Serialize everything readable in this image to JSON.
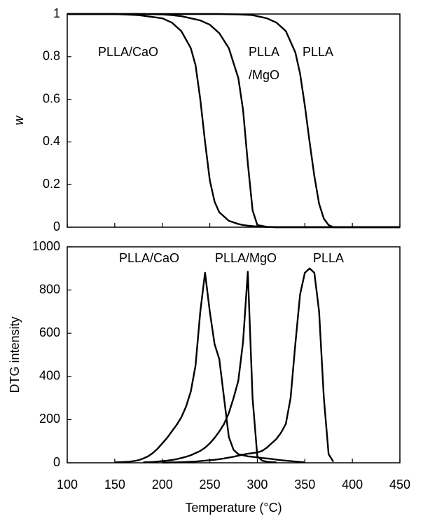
{
  "chart_data": [
    {
      "type": "line",
      "ylabel": "w",
      "x": [
        100,
        150,
        175,
        200,
        210,
        220,
        230,
        235,
        240,
        245,
        250,
        255,
        260,
        270,
        280,
        285,
        290,
        295,
        300,
        310,
        320,
        330,
        340,
        345,
        350,
        355,
        360,
        365,
        370,
        375,
        380,
        400,
        450
      ],
      "xlim": [
        100,
        450
      ],
      "xticks": [
        100,
        150,
        200,
        250,
        300,
        350,
        400,
        450
      ],
      "ylim": [
        0,
        1
      ],
      "yticks": [
        0,
        0.2,
        0.4,
        0.6,
        0.8,
        1
      ],
      "annotations": [
        "PLLA/CaO",
        "PLLA",
        "/MgO",
        "PLLA"
      ],
      "series": [
        {
          "color": "#000000",
          "values": [
            1,
            1,
            0.995,
            0.98,
            0.96,
            0.92,
            0.84,
            0.76,
            0.6,
            0.4,
            0.22,
            0.12,
            0.07,
            0.03,
            0.015,
            0.01,
            0.007,
            0.005,
            0.003,
            0.001,
            0,
            0,
            0,
            0,
            0,
            0,
            0,
            0,
            0,
            0,
            0,
            0,
            0
          ]
        },
        {
          "color": "#000000",
          "values": [
            1,
            1,
            1,
            0.998,
            0.995,
            0.99,
            0.98,
            0.975,
            0.97,
            0.96,
            0.95,
            0.93,
            0.91,
            0.84,
            0.7,
            0.55,
            0.3,
            0.08,
            0.01,
            0.002,
            0,
            0,
            0,
            0,
            0,
            0,
            0,
            0,
            0,
            0,
            0,
            0,
            0
          ]
        },
        {
          "color": "#000000",
          "values": [
            1,
            1,
            1,
            1,
            1,
            1,
            1,
            1,
            1,
            1,
            1,
            1,
            1,
            0.999,
            0.998,
            0.997,
            0.996,
            0.995,
            0.99,
            0.98,
            0.96,
            0.92,
            0.82,
            0.72,
            0.57,
            0.4,
            0.24,
            0.11,
            0.04,
            0.01,
            0,
            0,
            0
          ]
        }
      ]
    },
    {
      "type": "line",
      "xlabel": "Temperature (°C)",
      "ylabel": "DTG intensity",
      "x": [
        150,
        155,
        160,
        165,
        170,
        175,
        180,
        185,
        190,
        195,
        200,
        205,
        210,
        215,
        220,
        225,
        230,
        235,
        240,
        245,
        250,
        255,
        260,
        265,
        270,
        275,
        280,
        285,
        290,
        295,
        300,
        305,
        310,
        315,
        320,
        325,
        330,
        335,
        340,
        345,
        350,
        355,
        360,
        365,
        370,
        375,
        380
      ],
      "xlim": [
        100,
        450
      ],
      "xticks": [
        100,
        150,
        200,
        250,
        300,
        350,
        400,
        450
      ],
      "ylim": [
        0,
        1000
      ],
      "yticks": [
        0,
        200,
        400,
        600,
        800,
        1000
      ],
      "series": [
        {
          "name": "PLLA/CaO",
          "color": "#000000",
          "values": [
            2,
            3,
            4,
            5,
            8,
            12,
            20,
            30,
            45,
            65,
            90,
            115,
            145,
            175,
            210,
            260,
            330,
            450,
            700,
            880,
            700,
            550,
            480,
            300,
            120,
            60,
            40,
            35,
            30,
            28,
            25,
            22,
            20,
            18,
            15,
            12,
            10,
            8,
            6,
            4,
            2,
            null,
            null,
            null,
            null,
            null,
            null
          ]
        },
        {
          "name": "PLLA/MgO",
          "color": "#000000",
          "values": [
            null,
            null,
            null,
            null,
            null,
            null,
            2,
            3,
            4,
            6,
            8,
            10,
            13,
            17,
            22,
            28,
            35,
            45,
            55,
            70,
            90,
            115,
            145,
            180,
            230,
            300,
            380,
            560,
            885,
            300,
            30,
            10,
            5,
            3,
            2,
            null,
            null,
            null,
            null,
            null,
            null,
            null,
            null,
            null,
            null,
            null,
            null
          ]
        },
        {
          "name": "PLLA",
          "color": "#000000",
          "values": [
            null,
            null,
            null,
            null,
            null,
            null,
            null,
            null,
            null,
            null,
            1,
            1,
            2,
            2,
            3,
            4,
            5,
            6,
            8,
            10,
            12,
            14,
            17,
            20,
            24,
            28,
            33,
            38,
            42,
            45,
            48,
            55,
            70,
            90,
            110,
            140,
            180,
            300,
            550,
            780,
            880,
            900,
            880,
            700,
            300,
            40,
            5
          ]
        }
      ]
    }
  ]
}
